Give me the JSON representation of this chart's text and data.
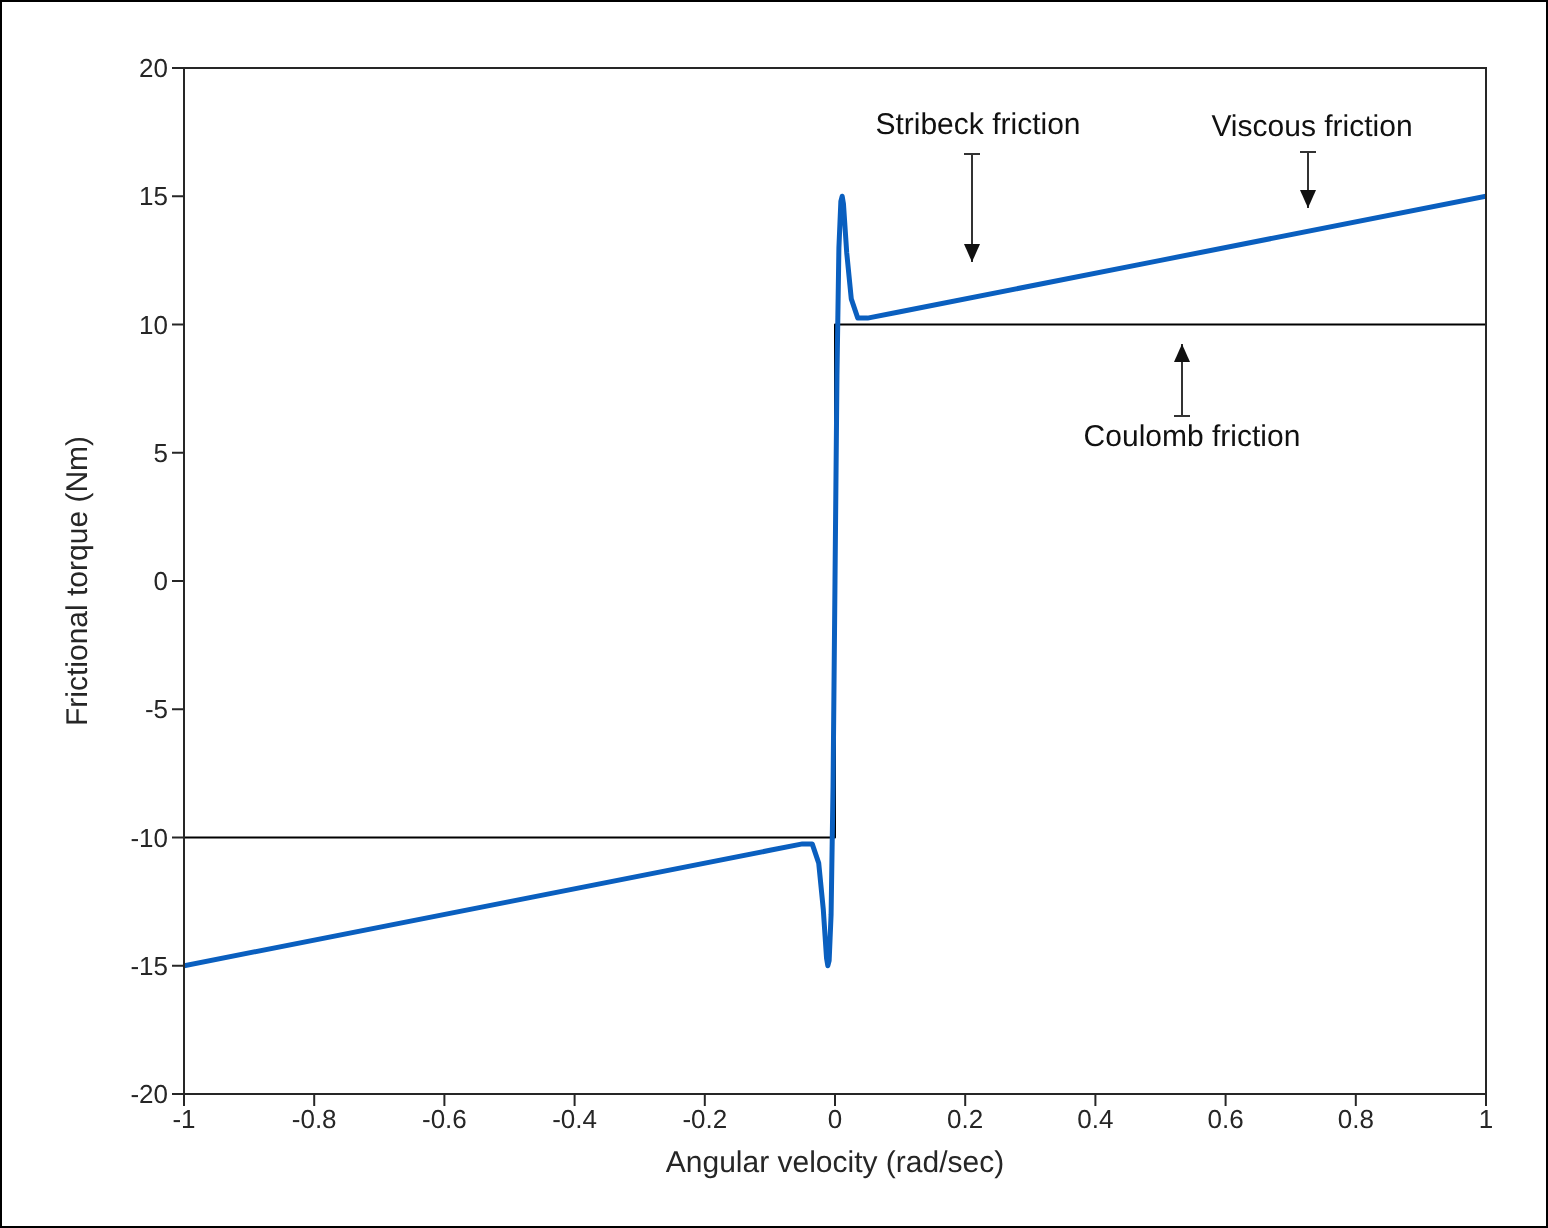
{
  "chart_data": {
    "type": "line",
    "xlabel": "Angular velocity (rad/sec)",
    "ylabel": "Frictional torque (Nm)",
    "xlim": [
      -1,
      1
    ],
    "xticks": [
      -1,
      -0.8,
      -0.6,
      -0.4,
      -0.2,
      0,
      0.2,
      0.4,
      0.6,
      0.8,
      1
    ],
    "ylim": [
      -20,
      20
    ],
    "yticks": [
      -20,
      -15,
      -10,
      -5,
      0,
      5,
      10,
      15,
      20
    ],
    "series": [
      {
        "color": "#000000",
        "x": [
          -1,
          0,
          0,
          1
        ],
        "values": [
          -10,
          -10,
          10,
          10
        ]
      },
      {
        "color": "#0a5fbf",
        "x": [
          -1,
          -0.5,
          -0.1,
          -0.05,
          -0.035,
          -0.025,
          -0.018,
          -0.013,
          -0.011,
          -0.009,
          -0.006,
          -0.003,
          0,
          0.003,
          0.006,
          0.009,
          0.011,
          0.013,
          0.018,
          0.025,
          0.035,
          0.05,
          0.1,
          0.5,
          1
        ],
        "values": [
          -15,
          -12.5,
          -10.5,
          -10.25,
          -10.25,
          -11,
          -12.8,
          -14.7,
          -15,
          -14.8,
          -13,
          -8,
          0,
          8,
          13,
          14.8,
          15,
          14.7,
          12.8,
          11,
          10.25,
          10.25,
          10.5,
          12.5,
          15
        ]
      }
    ],
    "annotations": [
      "Stribeck friction",
      "Viscous friction",
      "Coulomb friction"
    ]
  }
}
